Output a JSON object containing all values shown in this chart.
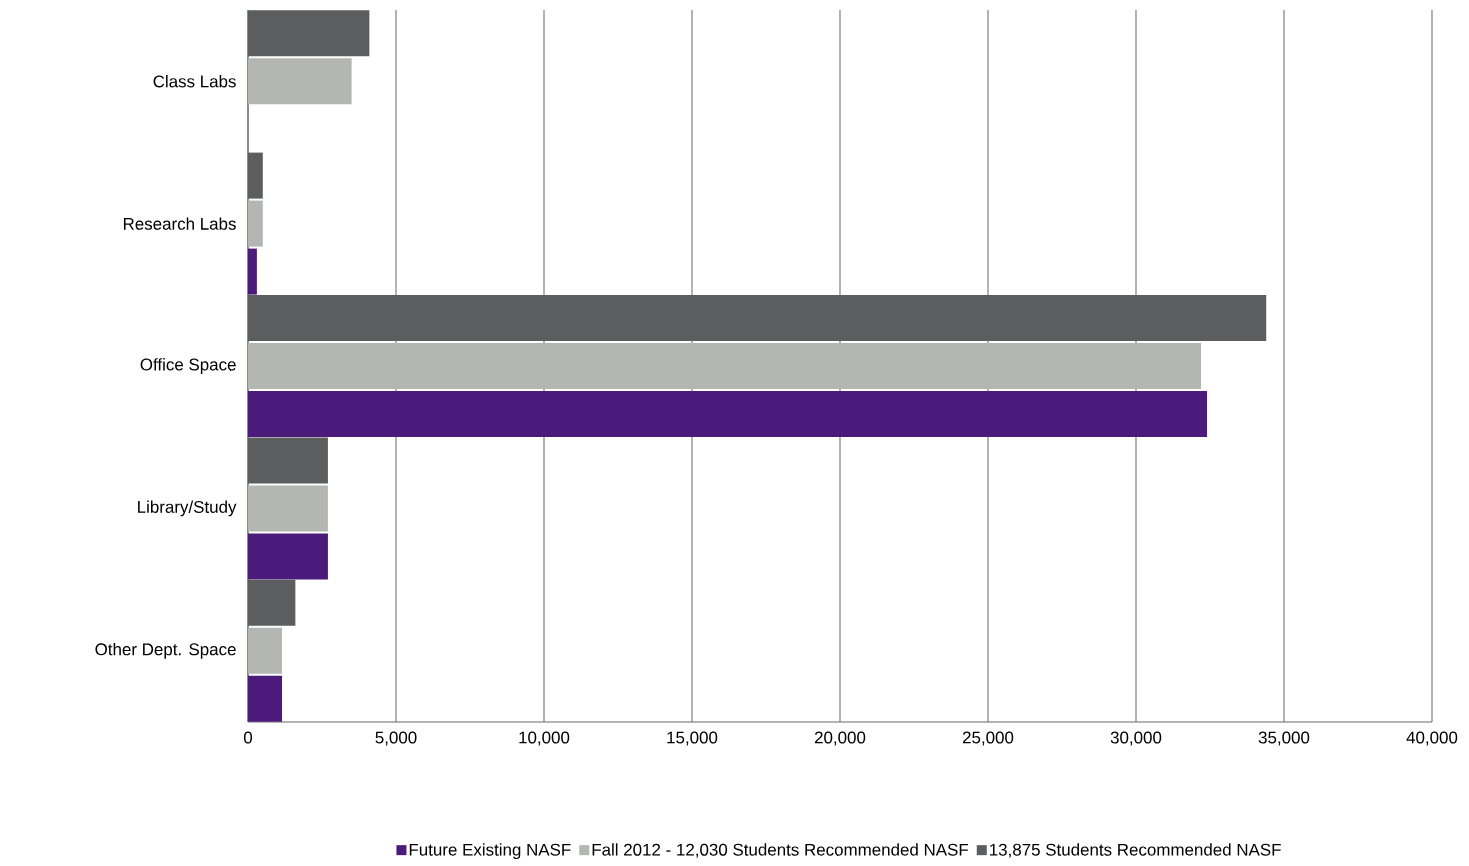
{
  "chart_data": {
    "type": "bar",
    "orientation": "horizontal",
    "categories": [
      "Class Labs",
      "Research Labs",
      "Office Space",
      "Library/Study",
      "Other Dept. Space"
    ],
    "series": [
      {
        "name": "Future Existing NASF",
        "color": "#4b1a7a",
        "values": [
          null,
          300,
          32400,
          2700,
          1150
        ]
      },
      {
        "name": "Fall 2012 - 12,030 Students Recommended NASF",
        "color": "#b4b6b2",
        "values": [
          3500,
          500,
          32200,
          2700,
          1150
        ]
      },
      {
        "name": "13,875 Students Recommended NASF",
        "color": "#5c5d5e",
        "values": [
          4100,
          500,
          34400,
          2700,
          1600
        ]
      }
    ],
    "xlim": [
      0,
      40000
    ],
    "xticks": [
      0,
      {
        "value": 5000,
        "label": "5,000"
      },
      {
        "value": 10000,
        "label": "10,000"
      },
      {
        "value": 15000,
        "label": "15,000"
      },
      {
        "value": 20000,
        "label": "20,000"
      },
      {
        "value": 25000,
        "label": "25,000"
      },
      {
        "value": 30000,
        "label": "30,000"
      },
      {
        "value": 35000,
        "label": "35,000"
      },
      {
        "value": 40000,
        "label": "40,000"
      }
    ],
    "grid": "x",
    "legend": "bottom"
  }
}
